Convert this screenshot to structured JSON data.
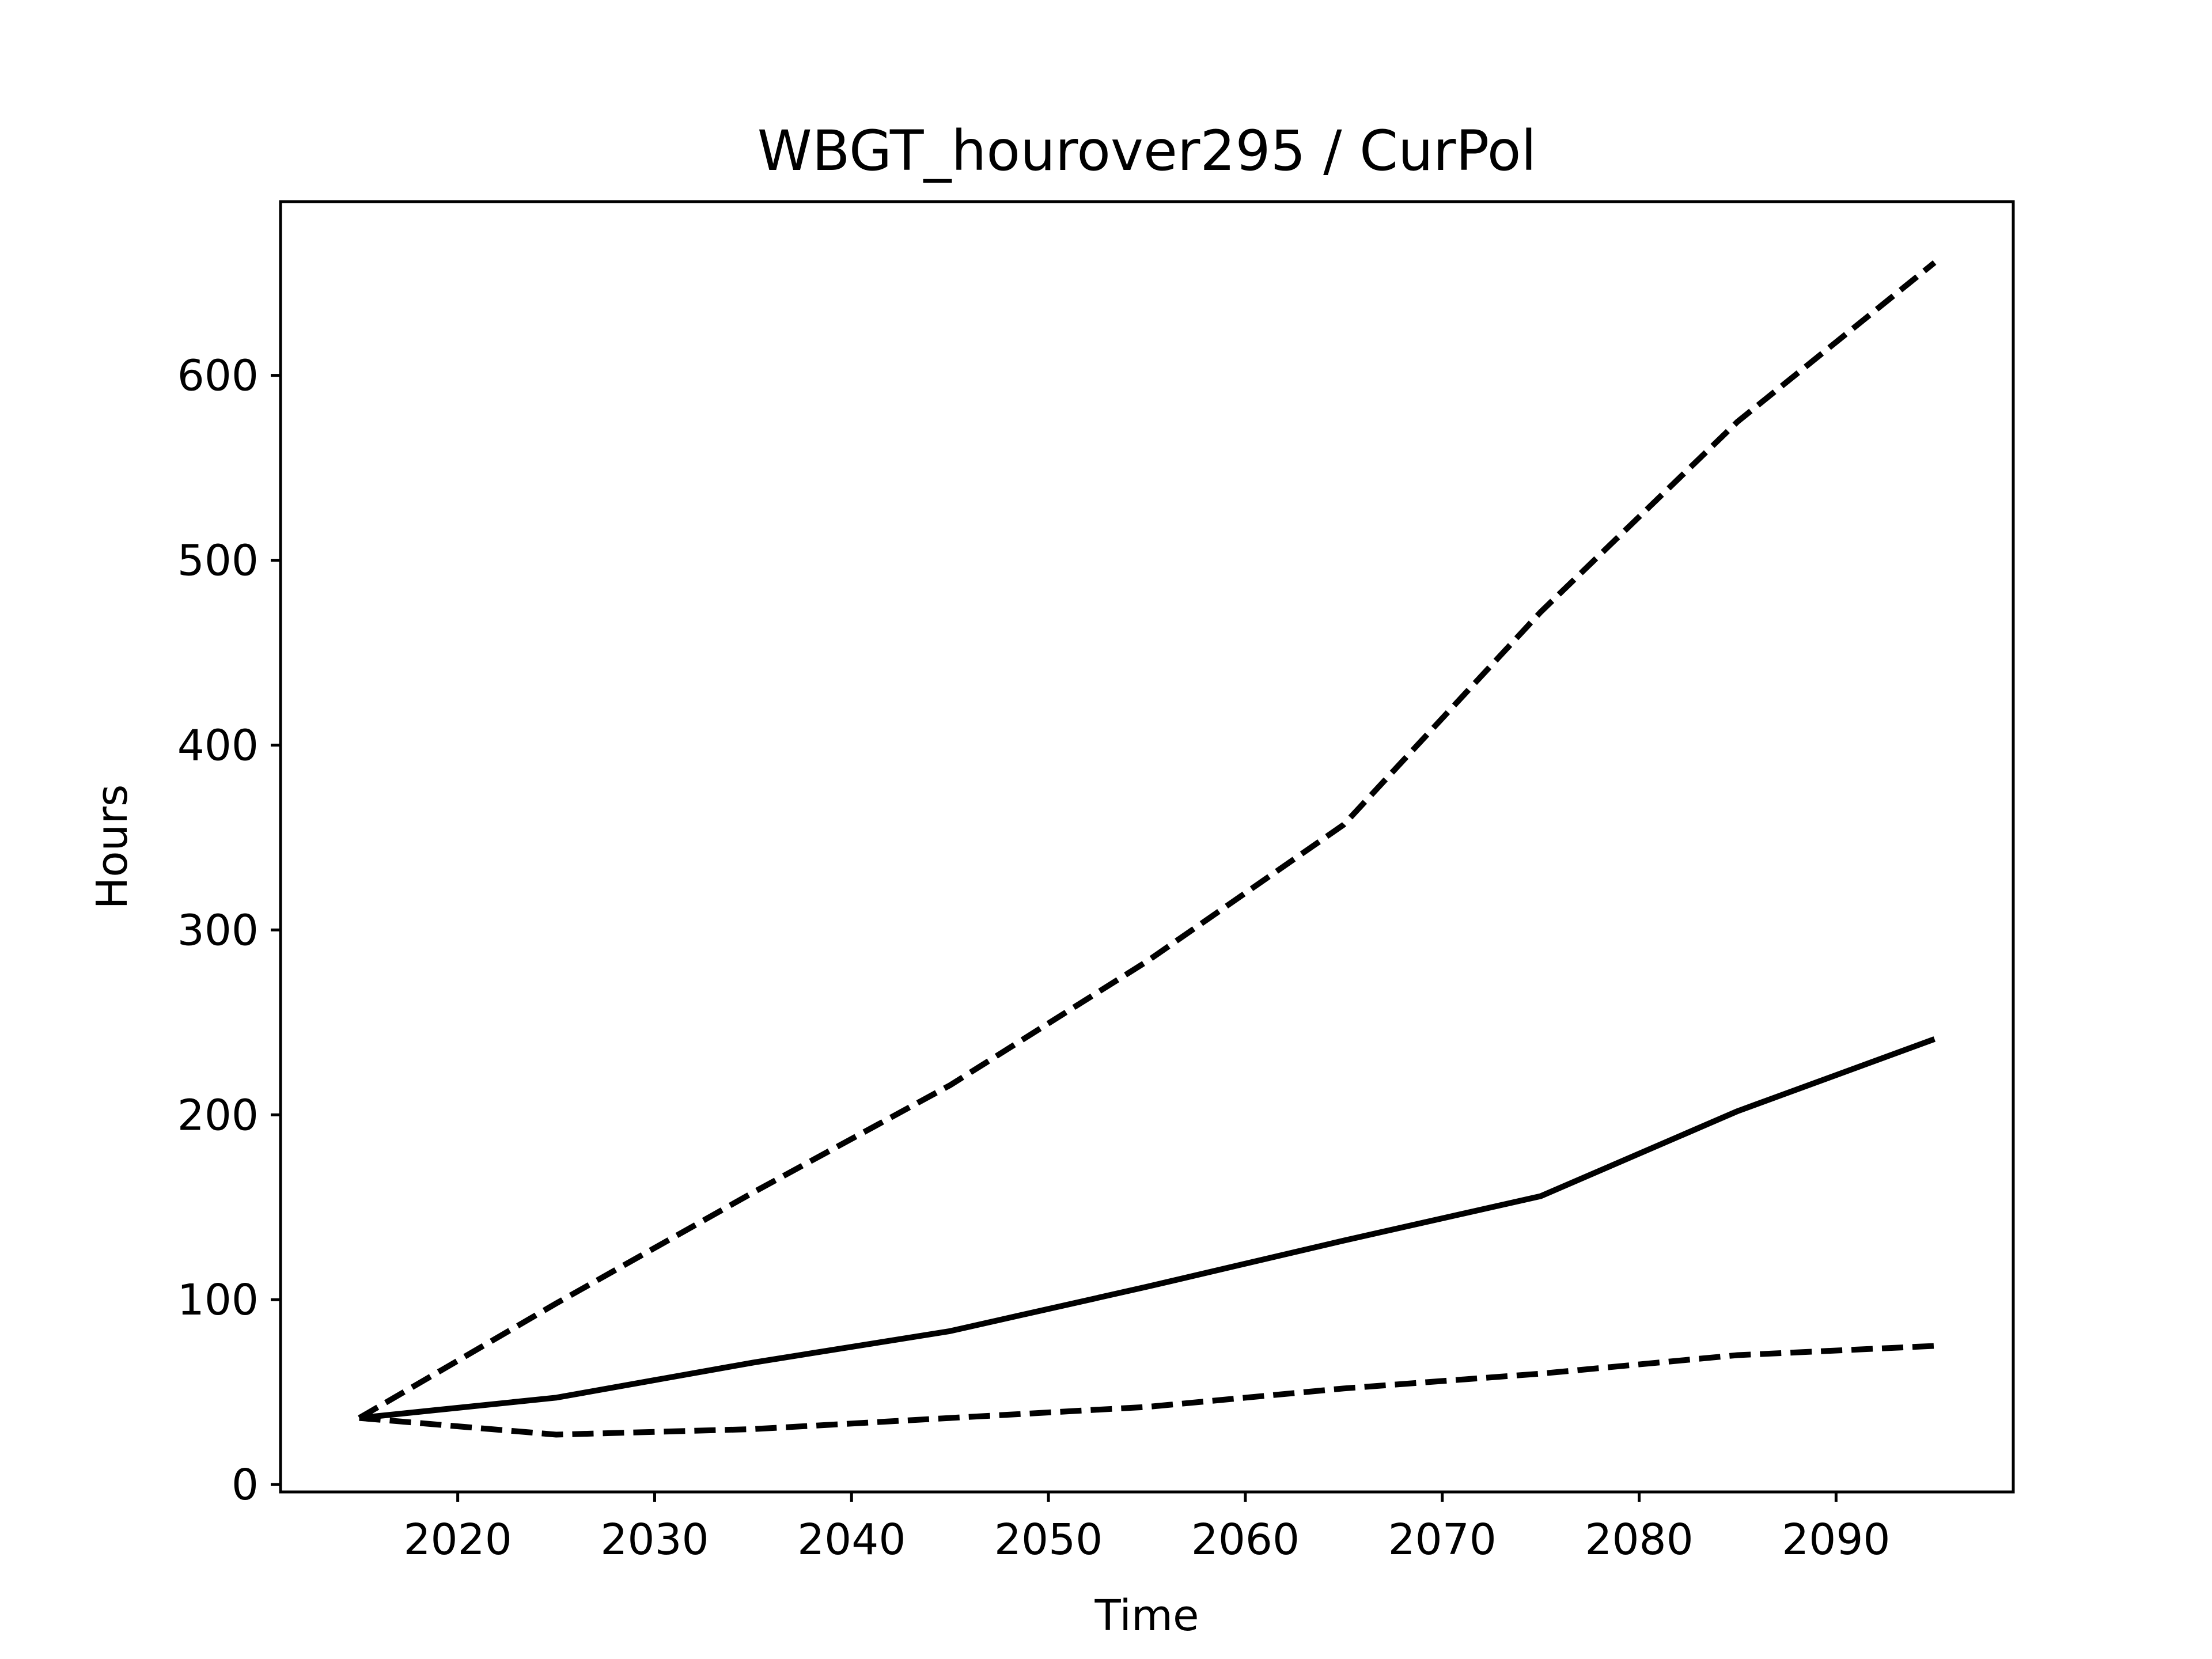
{
  "chart_data": {
    "type": "line",
    "title": "WBGT_hourover295 / CurPol",
    "xlabel": "Time",
    "ylabel": "Hours",
    "xlim": [
      2011,
      2099
    ],
    "ylim": [
      -4,
      694
    ],
    "x_ticks": [
      2020,
      2030,
      2040,
      2050,
      2060,
      2070,
      2080,
      2090
    ],
    "x_tick_labels": [
      "2020",
      "2030",
      "2040",
      "2050",
      "2060",
      "2070",
      "2080",
      "2090"
    ],
    "y_ticks": [
      0,
      100,
      200,
      300,
      400,
      500,
      600
    ],
    "y_tick_labels": [
      "0",
      "100",
      "200",
      "300",
      "400",
      "500",
      "600"
    ],
    "grid": false,
    "legend": "none",
    "x": [
      2015,
      2025,
      2035,
      2045,
      2055,
      2065,
      2075,
      2085,
      2095
    ],
    "series": [
      {
        "style": "solid",
        "color": "#000000",
        "values": [
          36,
          47,
          66,
          83,
          107,
          132,
          156,
          202,
          241
        ]
      },
      {
        "style": "dashed",
        "color": "#000000",
        "values": [
          36,
          98,
          158,
          216,
          283,
          357,
          472,
          575,
          661
        ]
      },
      {
        "style": "dashed",
        "color": "#000000",
        "values": [
          36,
          27,
          30,
          36,
          42,
          52,
          60,
          70,
          75
        ]
      }
    ]
  }
}
